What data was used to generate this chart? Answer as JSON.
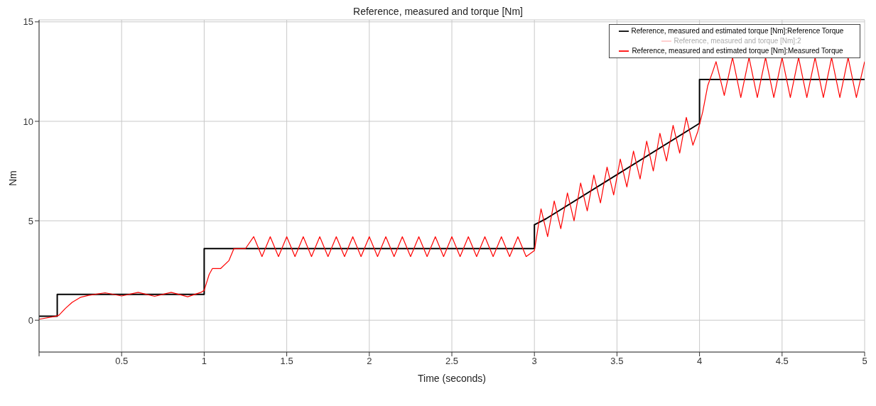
{
  "chart_data": {
    "type": "line",
    "title": "Reference, measured and torque [Nm]",
    "xlabel": "Time (seconds)",
    "ylabel": "Nm",
    "xlim": [
      0,
      5
    ],
    "ylim": [
      -1.6,
      15.1
    ],
    "xticks": [
      {
        "value": 0,
        "label": null
      },
      0.5,
      1,
      1.5,
      2,
      2.5,
      3,
      3.5,
      4,
      4.5,
      5
    ],
    "yticks": [
      0,
      5,
      10,
      15
    ],
    "grid": true,
    "legend": "top right",
    "marker": "none",
    "line_style": "solid",
    "series": [
      {
        "name": "Reference, measured and estimated torque [Nm]:Reference Torque",
        "color": "#000000",
        "x": [
          0,
          0.11,
          0.11,
          1.0,
          1.0,
          3.0,
          3.0,
          3.07,
          4.0,
          4.0,
          5.0
        ],
        "values": [
          0.2,
          0.2,
          1.3,
          1.3,
          3.6,
          3.6,
          4.8,
          5.1,
          9.9,
          12.1,
          12.1
        ]
      },
      {
        "name": "Reference, measured and  torque [Nm]:2",
        "color": "#ffc8c8"
      },
      {
        "name": "Reference, measured and estimated torque [Nm]:Measured Torque",
        "color": "#ff0000",
        "x": [
          0,
          0.1,
          0.12,
          0.16,
          0.2,
          0.25,
          0.3,
          0.4,
          0.5,
          0.6,
          0.7,
          0.8,
          0.9,
          0.98,
          1.0,
          1.03,
          1.05,
          1.1,
          1.15,
          1.18,
          1.25,
          1.3,
          1.35,
          1.4,
          1.45,
          1.5,
          1.55,
          1.6,
          1.65,
          1.7,
          1.75,
          1.8,
          1.85,
          1.9,
          1.95,
          2.0,
          2.05,
          2.1,
          2.15,
          2.2,
          2.25,
          2.3,
          2.35,
          2.4,
          2.45,
          2.5,
          2.55,
          2.6,
          2.65,
          2.7,
          2.75,
          2.8,
          2.85,
          2.9,
          2.95,
          3.0,
          3.04,
          3.08,
          3.12,
          3.16,
          3.2,
          3.24,
          3.28,
          3.32,
          3.36,
          3.4,
          3.44,
          3.48,
          3.52,
          3.56,
          3.6,
          3.64,
          3.68,
          3.72,
          3.76,
          3.8,
          3.84,
          3.88,
          3.92,
          3.96,
          3.99,
          4.02,
          4.05,
          4.08,
          4.1,
          4.15,
          4.2,
          4.25,
          4.3,
          4.35,
          4.4,
          4.45,
          4.5,
          4.55,
          4.6,
          4.65,
          4.7,
          4.75,
          4.8,
          4.85,
          4.9,
          4.95,
          5.0
        ],
        "values": [
          0.05,
          0.2,
          0.25,
          0.6,
          0.9,
          1.15,
          1.25,
          1.38,
          1.22,
          1.4,
          1.2,
          1.4,
          1.18,
          1.4,
          1.5,
          2.3,
          2.6,
          2.6,
          3.0,
          3.6,
          3.6,
          4.2,
          3.2,
          4.2,
          3.2,
          4.2,
          3.2,
          4.2,
          3.2,
          4.2,
          3.2,
          4.2,
          3.2,
          4.2,
          3.2,
          4.2,
          3.2,
          4.2,
          3.2,
          4.2,
          3.2,
          4.2,
          3.2,
          4.2,
          3.2,
          4.2,
          3.2,
          4.2,
          3.2,
          4.2,
          3.2,
          4.2,
          3.2,
          4.2,
          3.2,
          3.5,
          5.6,
          4.2,
          6.0,
          4.6,
          6.4,
          5.0,
          6.9,
          5.5,
          7.3,
          5.9,
          7.7,
          6.3,
          8.1,
          6.7,
          8.5,
          7.1,
          9.0,
          7.5,
          9.4,
          8.0,
          9.8,
          8.4,
          10.2,
          8.8,
          9.5,
          10.5,
          11.8,
          12.5,
          13.0,
          11.3,
          13.2,
          11.2,
          13.2,
          11.2,
          13.2,
          11.2,
          13.2,
          11.2,
          13.2,
          11.2,
          13.2,
          11.2,
          13.2,
          11.2,
          13.2,
          11.2,
          13.0
        ]
      }
    ]
  }
}
